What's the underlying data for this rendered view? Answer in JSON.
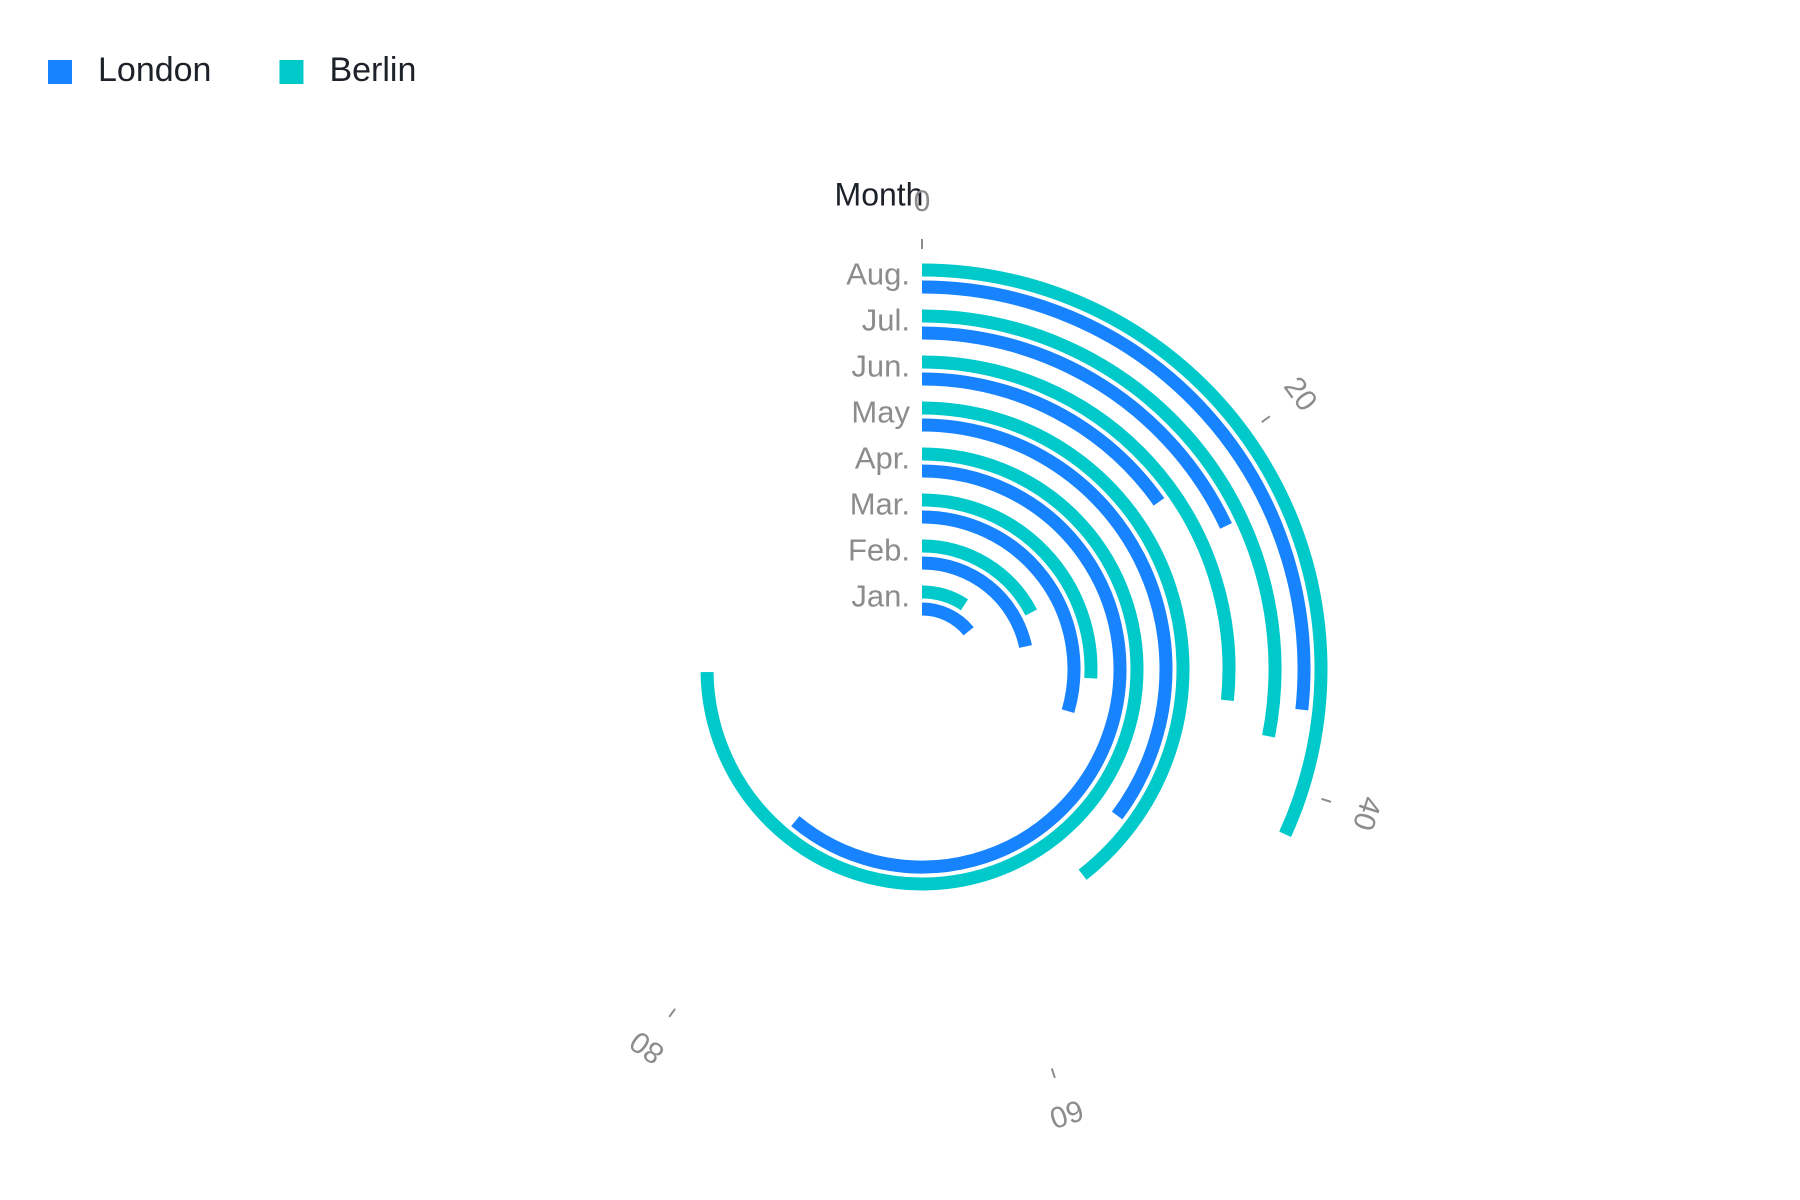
{
  "chart_data": {
    "type": "radial-bar",
    "x_label": "Month",
    "categories": [
      "Jan.",
      "Feb.",
      "Mar.",
      "Apr.",
      "May",
      "Jun.",
      "Jul.",
      "Aug."
    ],
    "series": [
      {
        "name": "London",
        "color": "#1783FF",
        "values": [
          18.9,
          28.8,
          39.3,
          81.4,
          47,
          20.3,
          24,
          35.6
        ]
      },
      {
        "name": "Berlin",
        "color": "#00C9C9",
        "values": [
          12.4,
          23.2,
          34.5,
          99.7,
          52.6,
          35.5,
          37.4,
          42.4
        ]
      }
    ],
    "ylim": [
      0,
      100
    ],
    "yticks": [
      0,
      20,
      40,
      60,
      80
    ],
    "legend": "top-left"
  }
}
